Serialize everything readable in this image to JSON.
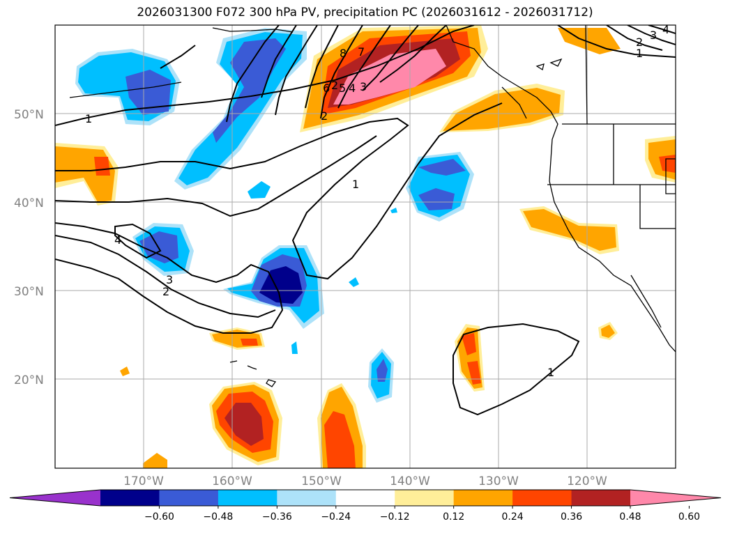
{
  "title": "2026031300 F072 300 hPa PV, precipitation PC (2026031612 - 2026031712)",
  "chart_data": {
    "type": "heatmap",
    "title": "2026031300 F072 300 hPa PV, precipitation PC (2026031612 - 2026031712)",
    "projection": "map",
    "grid": true,
    "lon_ticks": [
      "170°W",
      "160°W",
      "150°W",
      "140°W",
      "130°W",
      "120°W"
    ],
    "lat_ticks": [
      "50°N",
      "40°N",
      "30°N",
      "20°N"
    ],
    "colorbar": {
      "orientation": "horizontal",
      "extend": "both",
      "ticks": [
        "−0.60",
        "−0.48",
        "−0.36",
        "−0.24",
        "−0.12",
        "0.12",
        "0.24",
        "0.36",
        "0.48",
        "0.60"
      ],
      "colors": [
        "#9932CC",
        "#00008B",
        "#3A5BD6",
        "#00BFFF",
        "#ADE2F9",
        "#FFFFFF",
        "#FFEE99",
        "#FFA500",
        "#FF4500",
        "#B22222",
        "#FF88AA"
      ]
    },
    "pv_contour_labels": [
      "1",
      "1",
      "1",
      "1",
      "2",
      "2",
      "2",
      "2",
      "3",
      "3",
      "3",
      "4",
      "4",
      "4",
      "5",
      "6",
      "7",
      "8"
    ]
  }
}
